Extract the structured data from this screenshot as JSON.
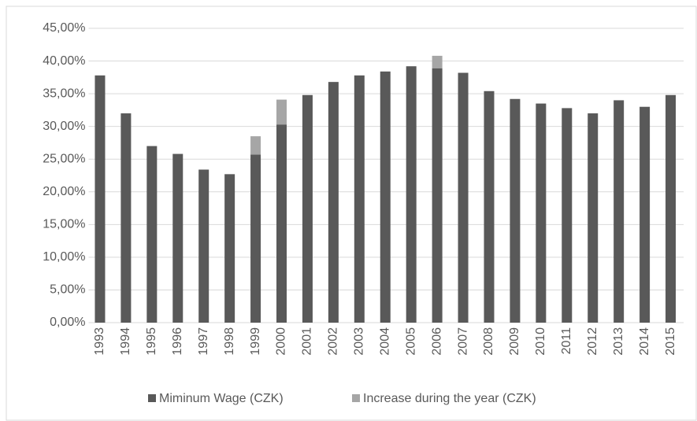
{
  "chart_data": {
    "type": "stacked_bar",
    "categories": [
      "1993",
      "1994",
      "1995",
      "1996",
      "1997",
      "1998",
      "1999",
      "2000",
      "2001",
      "2002",
      "2003",
      "2004",
      "2005",
      "2006",
      "2007",
      "2008",
      "2009",
      "2010",
      "2011",
      "2012",
      "2013",
      "2014",
      "2015"
    ],
    "series": [
      {
        "name": "Miminum Wage (CZK)",
        "color": "#595959",
        "values": [
          37.8,
          32,
          27,
          25.8,
          23.4,
          22.7,
          25.7,
          30.3,
          34.8,
          36.8,
          37.8,
          38.4,
          39.2,
          38.9,
          38.2,
          35.4,
          34.2,
          33.5,
          32.8,
          32,
          34,
          33,
          34.8
        ]
      },
      {
        "name": "Increase during the year (CZK)",
        "color": "#a6a6a6",
        "values": [
          0,
          0,
          0,
          0,
          0,
          0,
          2.8,
          3.8,
          0,
          0,
          0,
          0,
          0,
          1.9,
          0,
          0,
          0,
          0,
          0,
          0,
          0,
          0,
          0
        ]
      }
    ],
    "ylim": [
      0,
      45
    ],
    "yticks": [
      {
        "value": 0,
        "label": "0,00%"
      },
      {
        "value": 5,
        "label": "5,00%"
      },
      {
        "value": 10,
        "label": "10,00%"
      },
      {
        "value": 15,
        "label": "15,00%"
      },
      {
        "value": 20,
        "label": "20,00%"
      },
      {
        "value": 25,
        "label": "25,00%"
      },
      {
        "value": 30,
        "label": "30,00%"
      },
      {
        "value": 35,
        "label": "35,00%"
      },
      {
        "value": 40,
        "label": "40,00%"
      },
      {
        "value": 45,
        "label": "45,00%"
      }
    ],
    "grid": true,
    "legend": "bottom"
  }
}
